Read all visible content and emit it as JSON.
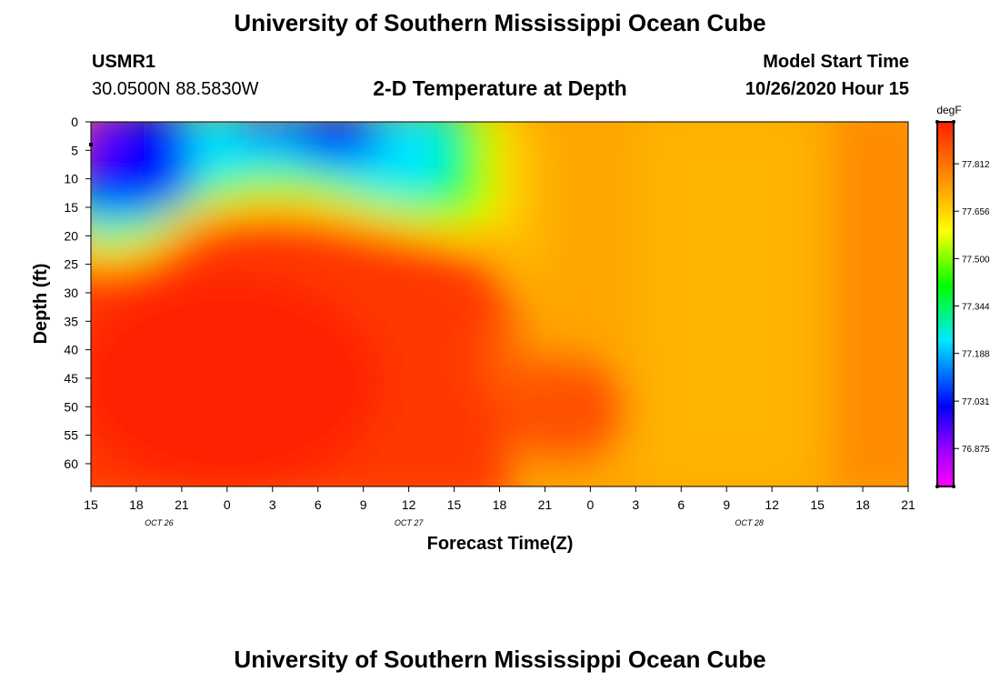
{
  "page": {
    "title": "University of Southern Mississippi Ocean Cube",
    "footer_title": "University of Southern Mississippi Ocean Cube",
    "station_id": "USMR1",
    "station_coords": "30.0500N 88.5830W",
    "plot_title": "2-D Temperature at Depth",
    "model_start_label": "Model Start Time",
    "model_start_value": "10/26/2020 Hour 15"
  },
  "chart_data": {
    "type": "heatmap",
    "title": "2-D Temperature at Depth",
    "xlabel": "Forecast Time(Z)",
    "ylabel": "Depth (ft)",
    "x_tick_labels": [
      "15",
      "18",
      "21",
      "0",
      "3",
      "6",
      "9",
      "12",
      "15",
      "18",
      "21",
      "0",
      "3",
      "6",
      "9",
      "12",
      "15",
      "18",
      "21"
    ],
    "x_date_labels": [
      {
        "label": "OCT 26",
        "at_tick": 1.5
      },
      {
        "label": "OCT 27",
        "at_tick": 7
      },
      {
        "label": "OCT 28",
        "at_tick": 14.5
      }
    ],
    "x_range_hours": [
      0,
      54
    ],
    "y_tick_labels": [
      "0",
      "5",
      "10",
      "15",
      "20",
      "25",
      "30",
      "35",
      "40",
      "45",
      "50",
      "55",
      "60"
    ],
    "ylim_ft": [
      0,
      64
    ],
    "y_inverted": true,
    "colorbar": {
      "unit": "degF",
      "tick_labels": [
        "77.812",
        "77.656",
        "77.500",
        "77.344",
        "77.188",
        "77.031",
        "76.875"
      ],
      "range": [
        76.75,
        77.95
      ],
      "colors_low_to_high": [
        "#ff00ff",
        "#0000ff",
        "#00e8ff",
        "#00ff00",
        "#ffff00",
        "#ffb000",
        "#ff2000"
      ]
    },
    "field_description_points": [
      {
        "hour": 0,
        "depth": 4,
        "value": 76.8
      },
      {
        "hour": 4,
        "depth": 12,
        "value": 77.0
      },
      {
        "hour": 17,
        "depth": 5,
        "value": 77.0
      },
      {
        "hour": 12,
        "depth": 20,
        "value": 77.7
      },
      {
        "hour": 8,
        "depth": 50,
        "value": 77.93
      },
      {
        "hour": 31,
        "depth": 50,
        "value": 77.93
      },
      {
        "hour": 40,
        "depth": 30,
        "value": 77.7
      },
      {
        "hour": 52,
        "depth": 30,
        "value": 77.82
      }
    ]
  }
}
